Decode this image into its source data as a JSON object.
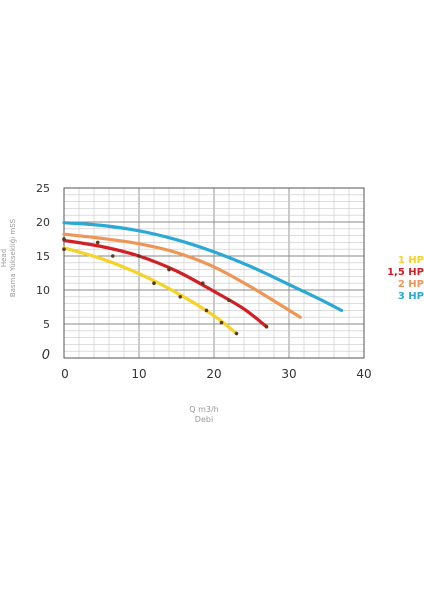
{
  "chart_data": {
    "type": "line",
    "title": "",
    "xlabel": [
      "Q m3/h",
      "Debi"
    ],
    "ylabel": [
      "Head",
      "Basma Yüksekliği mSS"
    ],
    "xlim": [
      0,
      40
    ],
    "ylim": [
      0,
      25
    ],
    "x_ticks": [
      "0",
      "10",
      "20",
      "30",
      "40"
    ],
    "y_ticks": [
      "0",
      "5",
      "10",
      "15",
      "20",
      "25"
    ],
    "grid": true,
    "legend_position": "right",
    "series": [
      {
        "name": "1 HP",
        "color": "#f5d327",
        "points": [
          [
            0,
            16.2
          ],
          [
            5,
            14.6
          ],
          [
            10,
            12.4
          ],
          [
            15,
            9.6
          ],
          [
            20,
            6.2
          ],
          [
            23,
            3.6
          ]
        ],
        "markers": [
          [
            0,
            16.0
          ],
          [
            6.5,
            15.0
          ],
          [
            12,
            11.0
          ],
          [
            15.5,
            9.0
          ],
          [
            19,
            7.0
          ],
          [
            21,
            5.2
          ],
          [
            23,
            3.6
          ]
        ]
      },
      {
        "name": "1,5 HP",
        "color": "#d21f26",
        "points": [
          [
            0,
            17.3
          ],
          [
            5,
            16.4
          ],
          [
            10,
            15.0
          ],
          [
            15,
            12.8
          ],
          [
            20,
            9.8
          ],
          [
            24,
            7.2
          ],
          [
            27,
            4.6
          ]
        ],
        "markers": [
          [
            0,
            17.5
          ],
          [
            4.5,
            17.0
          ],
          [
            10,
            15.0
          ],
          [
            14,
            13.0
          ],
          [
            18.5,
            11.0
          ],
          [
            22,
            8.5
          ],
          [
            27,
            4.6
          ]
        ]
      },
      {
        "name": "2 HP",
        "color": "#ee9655",
        "points": [
          [
            0,
            18.2
          ],
          [
            5,
            17.6
          ],
          [
            10,
            16.8
          ],
          [
            15,
            15.5
          ],
          [
            20,
            13.4
          ],
          [
            25,
            10.4
          ],
          [
            31.5,
            6.0
          ]
        ],
        "markers": []
      },
      {
        "name": "3 HP",
        "color": "#2aa9d6",
        "points": [
          [
            0,
            19.9
          ],
          [
            5,
            19.5
          ],
          [
            10,
            18.7
          ],
          [
            15,
            17.4
          ],
          [
            20,
            15.6
          ],
          [
            25,
            13.4
          ],
          [
            30,
            10.8
          ],
          [
            34,
            8.7
          ],
          [
            37,
            7.0
          ]
        ],
        "markers": []
      }
    ]
  }
}
